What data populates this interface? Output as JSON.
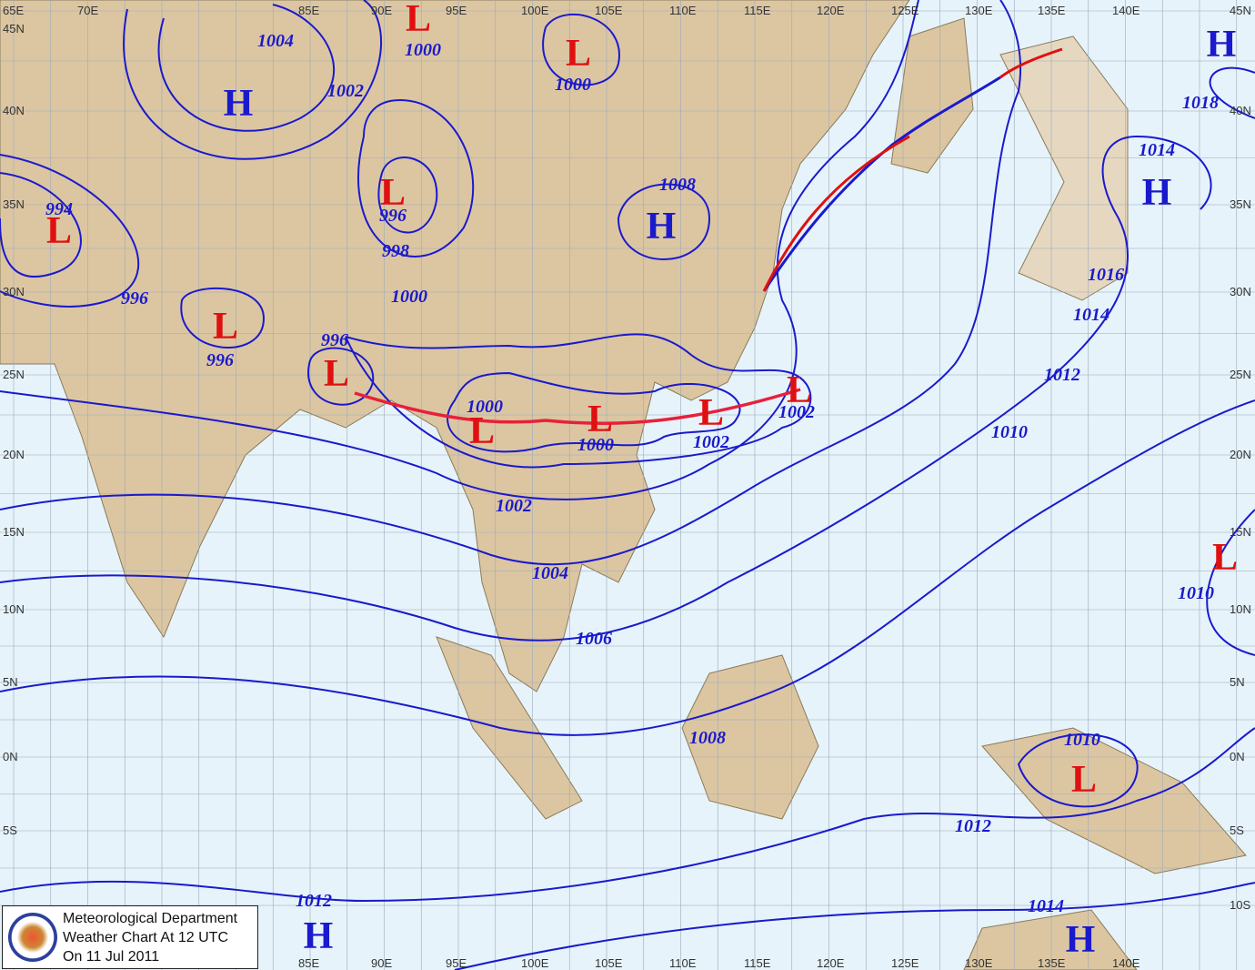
{
  "legend": {
    "line1": "Meteorological Department",
    "line2": "Weather Chart At 12 UTC",
    "line3": "On  11 Jul 2011",
    "seal": "Meteorological Department seal"
  },
  "longitudes": [
    "65E",
    "70E",
    "85E",
    "90E",
    "95E",
    "100E",
    "105E",
    "110E",
    "115E",
    "120E",
    "125E",
    "130E",
    "135E",
    "140E"
  ],
  "latitudes": [
    "45N",
    "40N",
    "35N",
    "30N",
    "25N",
    "20N",
    "15N",
    "10N",
    "5N",
    "0N",
    "5S",
    "10S"
  ],
  "pressure_centers": [
    {
      "type": "H"
    },
    {
      "type": "H"
    },
    {
      "type": "H"
    },
    {
      "type": "H"
    },
    {
      "type": "H"
    },
    {
      "type": "H"
    },
    {
      "type": "L"
    },
    {
      "type": "L"
    },
    {
      "type": "L"
    },
    {
      "type": "L"
    },
    {
      "type": "L"
    },
    {
      "type": "L"
    },
    {
      "type": "L"
    },
    {
      "type": "L"
    },
    {
      "type": "L"
    },
    {
      "type": "L"
    },
    {
      "type": "L"
    },
    {
      "type": "L"
    }
  ],
  "isobar_labels": [
    "1004",
    "1000",
    "1000",
    "1002",
    "1008",
    "994",
    "996",
    "998",
    "996",
    "1000",
    "996",
    "996",
    "1000",
    "1000",
    "1002",
    "1002",
    "1002",
    "1004",
    "1006",
    "1008",
    "1010",
    "1012",
    "1014",
    "1016",
    "1014",
    "1018",
    "1010",
    "1010",
    "1012",
    "1012",
    "1014"
  ],
  "colors": {
    "isobar": "#1a1acc",
    "high": "#1a1acc",
    "low": "#e01010",
    "land": "#d9c09a",
    "sea": "#e6f3fa",
    "trough": "#e8203a",
    "cold_front": "#1a1acc",
    "warm_front": "#e01010"
  }
}
